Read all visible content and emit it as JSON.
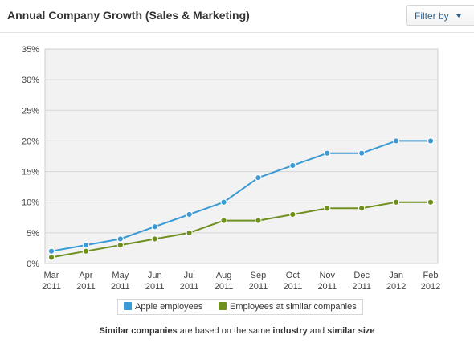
{
  "header": {
    "title": "Annual Company Growth (Sales & Marketing)",
    "filter_label": "Filter by"
  },
  "chart_data": {
    "type": "line",
    "title": "Annual Company Growth (Sales & Marketing)",
    "categories": [
      [
        "Mar",
        "2011"
      ],
      [
        "Apr",
        "2011"
      ],
      [
        "May",
        "2011"
      ],
      [
        "Jun",
        "2011"
      ],
      [
        "Jul",
        "2011"
      ],
      [
        "Aug",
        "2011"
      ],
      [
        "Sep",
        "2011"
      ],
      [
        "Oct",
        "2011"
      ],
      [
        "Nov",
        "2011"
      ],
      [
        "Dec",
        "2011"
      ],
      [
        "Jan",
        "2012"
      ],
      [
        "Feb",
        "2012"
      ]
    ],
    "ylim": [
      0,
      35
    ],
    "y_ticks": [
      "0%",
      "5%",
      "10%",
      "15%",
      "20%",
      "25%",
      "30%",
      "35%"
    ],
    "y_tick_values": [
      0,
      5,
      10,
      15,
      20,
      25,
      30,
      35
    ],
    "grid": true,
    "legend_position": "bottom",
    "series": [
      {
        "name": "Apple employees",
        "color": "#3b9ad3",
        "values": [
          2,
          3,
          4,
          6,
          8,
          10,
          14,
          16,
          18,
          18,
          20,
          20
        ]
      },
      {
        "name": "Employees at similar companies",
        "color": "#6f8f1f",
        "values": [
          1,
          2,
          3,
          4,
          5,
          7,
          7,
          8,
          9,
          9,
          10,
          10
        ]
      }
    ]
  },
  "footnote": {
    "part1": "Similar companies",
    "part2": " are based on the same ",
    "part3": "industry",
    "part4": " and ",
    "part5": "similar size"
  }
}
